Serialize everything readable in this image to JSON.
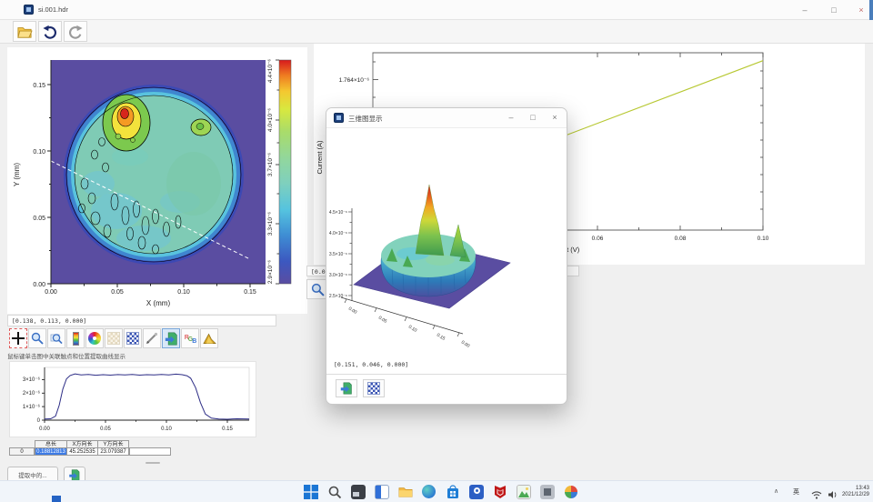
{
  "window": {
    "title": "si.001.hdr",
    "controls": {
      "minimize": "–",
      "maximize": "□",
      "close": "×"
    }
  },
  "app_toolbar": {
    "icons": [
      "open-folder",
      "undo",
      "redo"
    ]
  },
  "contour_panel": {
    "status": "[0.138, 0.113, 0.000]"
  },
  "right_panel": {
    "status_partial": "[0.04"
  },
  "tool_row": {
    "icons": [
      "crosshair",
      "zoom",
      "zoom-region",
      "colorbar",
      "color-wheel",
      "pattern-faded",
      "matrix",
      "pen",
      "export",
      "rgb",
      "surface-3d"
    ]
  },
  "hint": "鼠标键单击图中关联触点和位置提取曲线显示",
  "table": {
    "headers": [
      "",
      "总长",
      "X方向长",
      "Y方向长"
    ],
    "rows": [
      [
        "0",
        "0.18812813",
        "45.252535",
        "23.079387"
      ]
    ]
  },
  "bottom_bar": {
    "button_label": "提取中的...",
    "icons": [
      "image-export"
    ]
  },
  "dialog": {
    "title": "三维图显示",
    "controls": {
      "minimize": "–",
      "maximize": "□",
      "close": "×"
    },
    "status": "[0.151, 0.046, 0.000]",
    "icons": [
      "export",
      "matrix"
    ]
  },
  "taskbar": {
    "icons": [
      "windows-start",
      "search",
      "widgets-dark",
      "task-view",
      "file-explorer",
      "edge-browser",
      "microsoft-store",
      "app-blue",
      "mcafee",
      "app-image",
      "app-gray",
      "app-colorful"
    ],
    "tray": {
      "ime": "英",
      "time": "13:43",
      "date": "2021/12/29"
    }
  },
  "chart_data": [
    {
      "id": "wafer-contour-map",
      "type": "heatmap",
      "xlabel": "X (mm)",
      "ylabel": "Y (mm)",
      "xticks": [
        "0.00",
        "0.05",
        "0.10",
        "0.15"
      ],
      "yticks": [
        "0.00",
        "0.05",
        "0.10",
        "0.15"
      ],
      "xlim": [
        0,
        0.162
      ],
      "ylim": [
        0,
        0.168
      ],
      "zlim": [
        2.9e-06,
        4.4e-06
      ],
      "colorbar_ticks": [
        "2.9×10⁻⁶",
        "3.3×10⁻⁶",
        "3.7×10⁻⁶",
        "4.0×10⁻⁶",
        "4.4×10⁻⁶"
      ],
      "description": "Circular wafer map ~3.4e-6 mean level; red hotspot ~4.4e-6 near (0.057,0.122); small green spot ~4.0e-6 near (0.113,0.116); white dashed section line from (0,0.092) to (0.149,0.012)."
    },
    {
      "id": "iv-curve",
      "type": "line",
      "xlabel": "Volt (V)",
      "ylabel": "Current (A)",
      "xticks": [
        "0.06",
        "0.08",
        "0.10"
      ],
      "ytick_labels": [
        "1.764×10⁻⁶"
      ],
      "x": [
        0.005,
        0.1004
      ],
      "y": [
        1.11e-06,
        1.86e-06
      ],
      "xlim": [
        0.005,
        0.1004
      ],
      "ylim": [
        1e-06,
        1.9e-06
      ],
      "line_color": "#b7c832"
    },
    {
      "id": "section-profile",
      "type": "line",
      "xticks": [
        "0.00",
        "0.05",
        "0.10",
        "0.15"
      ],
      "ytick_labels": [
        "0",
        "1×10⁻⁶",
        "2×10⁻⁶",
        "3×10⁻⁶"
      ],
      "x": [
        0.0,
        0.005,
        0.009,
        0.012,
        0.015,
        0.018,
        0.021,
        0.025,
        0.03,
        0.036,
        0.042,
        0.048,
        0.054,
        0.06,
        0.066,
        0.072,
        0.078,
        0.084,
        0.09,
        0.096,
        0.102,
        0.108,
        0.113,
        0.117,
        0.12,
        0.124,
        0.128,
        0.132,
        0.137,
        0.143,
        0.15,
        0.158,
        0.168
      ],
      "y": [
        8e-08,
        1e-07,
        3e-07,
        1.1e-06,
        2.3e-06,
        3.05e-06,
        3.3e-06,
        3.42e-06,
        3.35e-06,
        3.38e-06,
        3.32e-06,
        3.36e-06,
        3.33e-06,
        3.37e-06,
        3.34e-06,
        3.38e-06,
        3.33e-06,
        3.36e-06,
        3.34e-06,
        3.38e-06,
        3.35e-06,
        3.4e-06,
        3.36e-06,
        3.28e-06,
        3.1e-06,
        2.4e-06,
        1.3e-06,
        4.5e-07,
        1.5e-07,
        9e-08,
        7e-08,
        1e-07,
        9e-08
      ],
      "xlim": [
        0,
        0.168
      ],
      "ylim": [
        0,
        3.9e-06
      ],
      "line_color": "#2d2d86"
    },
    {
      "id": "surface-3d",
      "type": "surface",
      "zticks": [
        "4.5×10⁻⁶",
        "4.0×10⁻⁶",
        "3.5×10⁻⁶",
        "3.0×10⁻⁶",
        "2.5×10⁻⁶"
      ],
      "xticks": [
        "0.00",
        "0.05",
        "0.10",
        "0.15",
        "0.00"
      ],
      "description": "3D surface of the wafer map: flat purple base plane, circular teal mesa with jagged blue skirt, central sharp peak colored green→yellow→red."
    }
  ]
}
